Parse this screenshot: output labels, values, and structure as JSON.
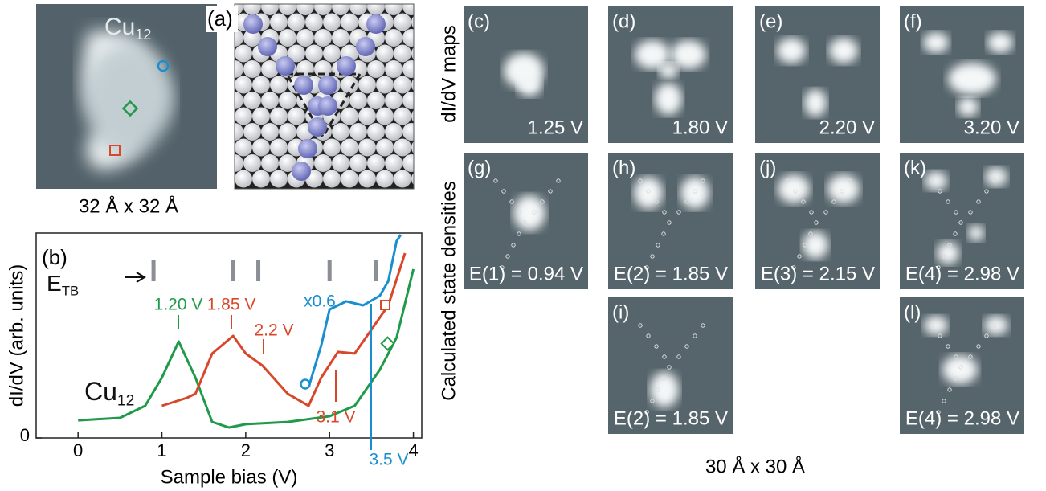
{
  "stm_image": {
    "label": {
      "text": "Cu",
      "sub": "12"
    },
    "scale": "32 Å x 32 Å"
  },
  "model": {
    "label": "(a)"
  },
  "chart_data": {
    "type": "line",
    "panel_label": "(b)",
    "x_label": "Sample bias (V)",
    "y_label": "dI/dV (arb. units)",
    "xlim": [
      -0.5,
      4.1
    ],
    "xticks": [
      0,
      1,
      2,
      3,
      4
    ],
    "ylim": [
      0,
      1
    ],
    "yticks": [
      0
    ],
    "etb": {
      "label": {
        "text": "E",
        "sub": "TB"
      },
      "levels": [
        0.9,
        1.85,
        2.15,
        3.0,
        3.55
      ],
      "color": "#8a8f96"
    },
    "curve_label": {
      "text": "Cu",
      "sub": "12"
    },
    "series": [
      {
        "color": "#1f9a48",
        "x": [
          0,
          0.5,
          0.8,
          1.0,
          1.2,
          1.4,
          1.6,
          1.8,
          2.0,
          2.5,
          3.0,
          3.3,
          3.6,
          3.8,
          4.0
        ],
        "values": [
          0.086,
          0.098,
          0.157,
          0.294,
          0.471,
          0.294,
          0.078,
          0.051,
          0.067,
          0.078,
          0.106,
          0.157,
          0.333,
          0.49,
          0.824
        ]
      },
      {
        "color": "#d9472b",
        "x": [
          1.0,
          1.3,
          1.4,
          1.6,
          1.85,
          2.0,
          2.2,
          2.5,
          2.75,
          2.9,
          3.1,
          3.3,
          3.5,
          3.7,
          3.9
        ],
        "values": [
          0.157,
          0.196,
          0.216,
          0.412,
          0.498,
          0.412,
          0.353,
          0.216,
          0.157,
          0.294,
          0.42,
          0.412,
          0.529,
          0.647,
          0.902
        ]
      },
      {
        "color": "#1a8fd0",
        "x": [
          2.75,
          2.9,
          3.0,
          3.2,
          3.4,
          3.6,
          3.7,
          3.8,
          3.85
        ],
        "values": [
          0.247,
          0.451,
          0.627,
          0.667,
          0.647,
          0.694,
          0.765,
          0.961,
          0.992
        ]
      }
    ],
    "annotations": [
      {
        "text": "1.20 V",
        "color": "#1f9a48"
      },
      {
        "text": "1.85 V",
        "color": "#d9472b"
      },
      {
        "text": "2.2 V",
        "color": "#d9472b"
      },
      {
        "text": "3.1 V",
        "color": "#d9472b"
      },
      {
        "text": "3.5 V",
        "color": "#1a8fd0"
      },
      {
        "text": "x0.6",
        "color": "#1a8fd0"
      }
    ]
  },
  "maps": {
    "row_labels": [
      "dI/dV maps",
      "Calculated state densities"
    ],
    "scale": "30 Å x 30 Å",
    "panels": [
      {
        "label": "(c)",
        "caption": "1.25 V"
      },
      {
        "label": "(d)",
        "caption": "1.80 V"
      },
      {
        "label": "(e)",
        "caption": "2.20 V"
      },
      {
        "label": "(f)",
        "caption": "3.20 V"
      },
      {
        "label": "(g)",
        "caption": "E(1) = 0.94 V"
      },
      {
        "label": "(h)",
        "caption": "E(2) = 1.85 V"
      },
      {
        "label": "(j)",
        "caption": "E(3) = 2.15 V"
      },
      {
        "label": "(k)",
        "caption": "E(4) = 2.98 V"
      },
      {
        "label": "(i)",
        "caption": "E(2) = 1.85 V"
      },
      {
        "label": "(l)",
        "caption": "E(4) = 2.98 V"
      }
    ]
  }
}
